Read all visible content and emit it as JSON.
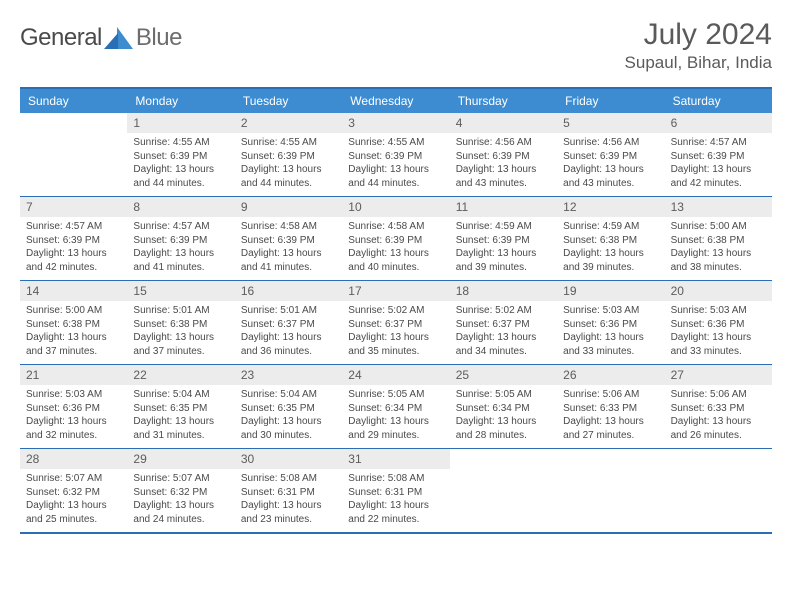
{
  "logo": {
    "text1": "General",
    "text2": "Blue"
  },
  "title": "July 2024",
  "location": "Supaul, Bihar, India",
  "colors": {
    "header_bg": "#3d8cd1",
    "border": "#2a6fb3",
    "daynum_bg": "#ececec",
    "text": "#4a4a4a",
    "title_text": "#5a5a5a"
  },
  "daynames": [
    "Sunday",
    "Monday",
    "Tuesday",
    "Wednesday",
    "Thursday",
    "Friday",
    "Saturday"
  ],
  "first_weekday": 1,
  "days": [
    {
      "n": 1,
      "sr": "4:55 AM",
      "ss": "6:39 PM",
      "dh": 13,
      "dm": 44
    },
    {
      "n": 2,
      "sr": "4:55 AM",
      "ss": "6:39 PM",
      "dh": 13,
      "dm": 44
    },
    {
      "n": 3,
      "sr": "4:55 AM",
      "ss": "6:39 PM",
      "dh": 13,
      "dm": 44
    },
    {
      "n": 4,
      "sr": "4:56 AM",
      "ss": "6:39 PM",
      "dh": 13,
      "dm": 43
    },
    {
      "n": 5,
      "sr": "4:56 AM",
      "ss": "6:39 PM",
      "dh": 13,
      "dm": 43
    },
    {
      "n": 6,
      "sr": "4:57 AM",
      "ss": "6:39 PM",
      "dh": 13,
      "dm": 42
    },
    {
      "n": 7,
      "sr": "4:57 AM",
      "ss": "6:39 PM",
      "dh": 13,
      "dm": 42
    },
    {
      "n": 8,
      "sr": "4:57 AM",
      "ss": "6:39 PM",
      "dh": 13,
      "dm": 41
    },
    {
      "n": 9,
      "sr": "4:58 AM",
      "ss": "6:39 PM",
      "dh": 13,
      "dm": 41
    },
    {
      "n": 10,
      "sr": "4:58 AM",
      "ss": "6:39 PM",
      "dh": 13,
      "dm": 40
    },
    {
      "n": 11,
      "sr": "4:59 AM",
      "ss": "6:39 PM",
      "dh": 13,
      "dm": 39
    },
    {
      "n": 12,
      "sr": "4:59 AM",
      "ss": "6:38 PM",
      "dh": 13,
      "dm": 39
    },
    {
      "n": 13,
      "sr": "5:00 AM",
      "ss": "6:38 PM",
      "dh": 13,
      "dm": 38
    },
    {
      "n": 14,
      "sr": "5:00 AM",
      "ss": "6:38 PM",
      "dh": 13,
      "dm": 37
    },
    {
      "n": 15,
      "sr": "5:01 AM",
      "ss": "6:38 PM",
      "dh": 13,
      "dm": 37
    },
    {
      "n": 16,
      "sr": "5:01 AM",
      "ss": "6:37 PM",
      "dh": 13,
      "dm": 36
    },
    {
      "n": 17,
      "sr": "5:02 AM",
      "ss": "6:37 PM",
      "dh": 13,
      "dm": 35
    },
    {
      "n": 18,
      "sr": "5:02 AM",
      "ss": "6:37 PM",
      "dh": 13,
      "dm": 34
    },
    {
      "n": 19,
      "sr": "5:03 AM",
      "ss": "6:36 PM",
      "dh": 13,
      "dm": 33
    },
    {
      "n": 20,
      "sr": "5:03 AM",
      "ss": "6:36 PM",
      "dh": 13,
      "dm": 33
    },
    {
      "n": 21,
      "sr": "5:03 AM",
      "ss": "6:36 PM",
      "dh": 13,
      "dm": 32
    },
    {
      "n": 22,
      "sr": "5:04 AM",
      "ss": "6:35 PM",
      "dh": 13,
      "dm": 31
    },
    {
      "n": 23,
      "sr": "5:04 AM",
      "ss": "6:35 PM",
      "dh": 13,
      "dm": 30
    },
    {
      "n": 24,
      "sr": "5:05 AM",
      "ss": "6:34 PM",
      "dh": 13,
      "dm": 29
    },
    {
      "n": 25,
      "sr": "5:05 AM",
      "ss": "6:34 PM",
      "dh": 13,
      "dm": 28
    },
    {
      "n": 26,
      "sr": "5:06 AM",
      "ss": "6:33 PM",
      "dh": 13,
      "dm": 27
    },
    {
      "n": 27,
      "sr": "5:06 AM",
      "ss": "6:33 PM",
      "dh": 13,
      "dm": 26
    },
    {
      "n": 28,
      "sr": "5:07 AM",
      "ss": "6:32 PM",
      "dh": 13,
      "dm": 25
    },
    {
      "n": 29,
      "sr": "5:07 AM",
      "ss": "6:32 PM",
      "dh": 13,
      "dm": 24
    },
    {
      "n": 30,
      "sr": "5:08 AM",
      "ss": "6:31 PM",
      "dh": 13,
      "dm": 23
    },
    {
      "n": 31,
      "sr": "5:08 AM",
      "ss": "6:31 PM",
      "dh": 13,
      "dm": 22
    }
  ],
  "labels": {
    "sunrise": "Sunrise:",
    "sunset": "Sunset:",
    "daylight": "Daylight:",
    "hours": "hours",
    "and": "and",
    "minutes": "minutes."
  }
}
